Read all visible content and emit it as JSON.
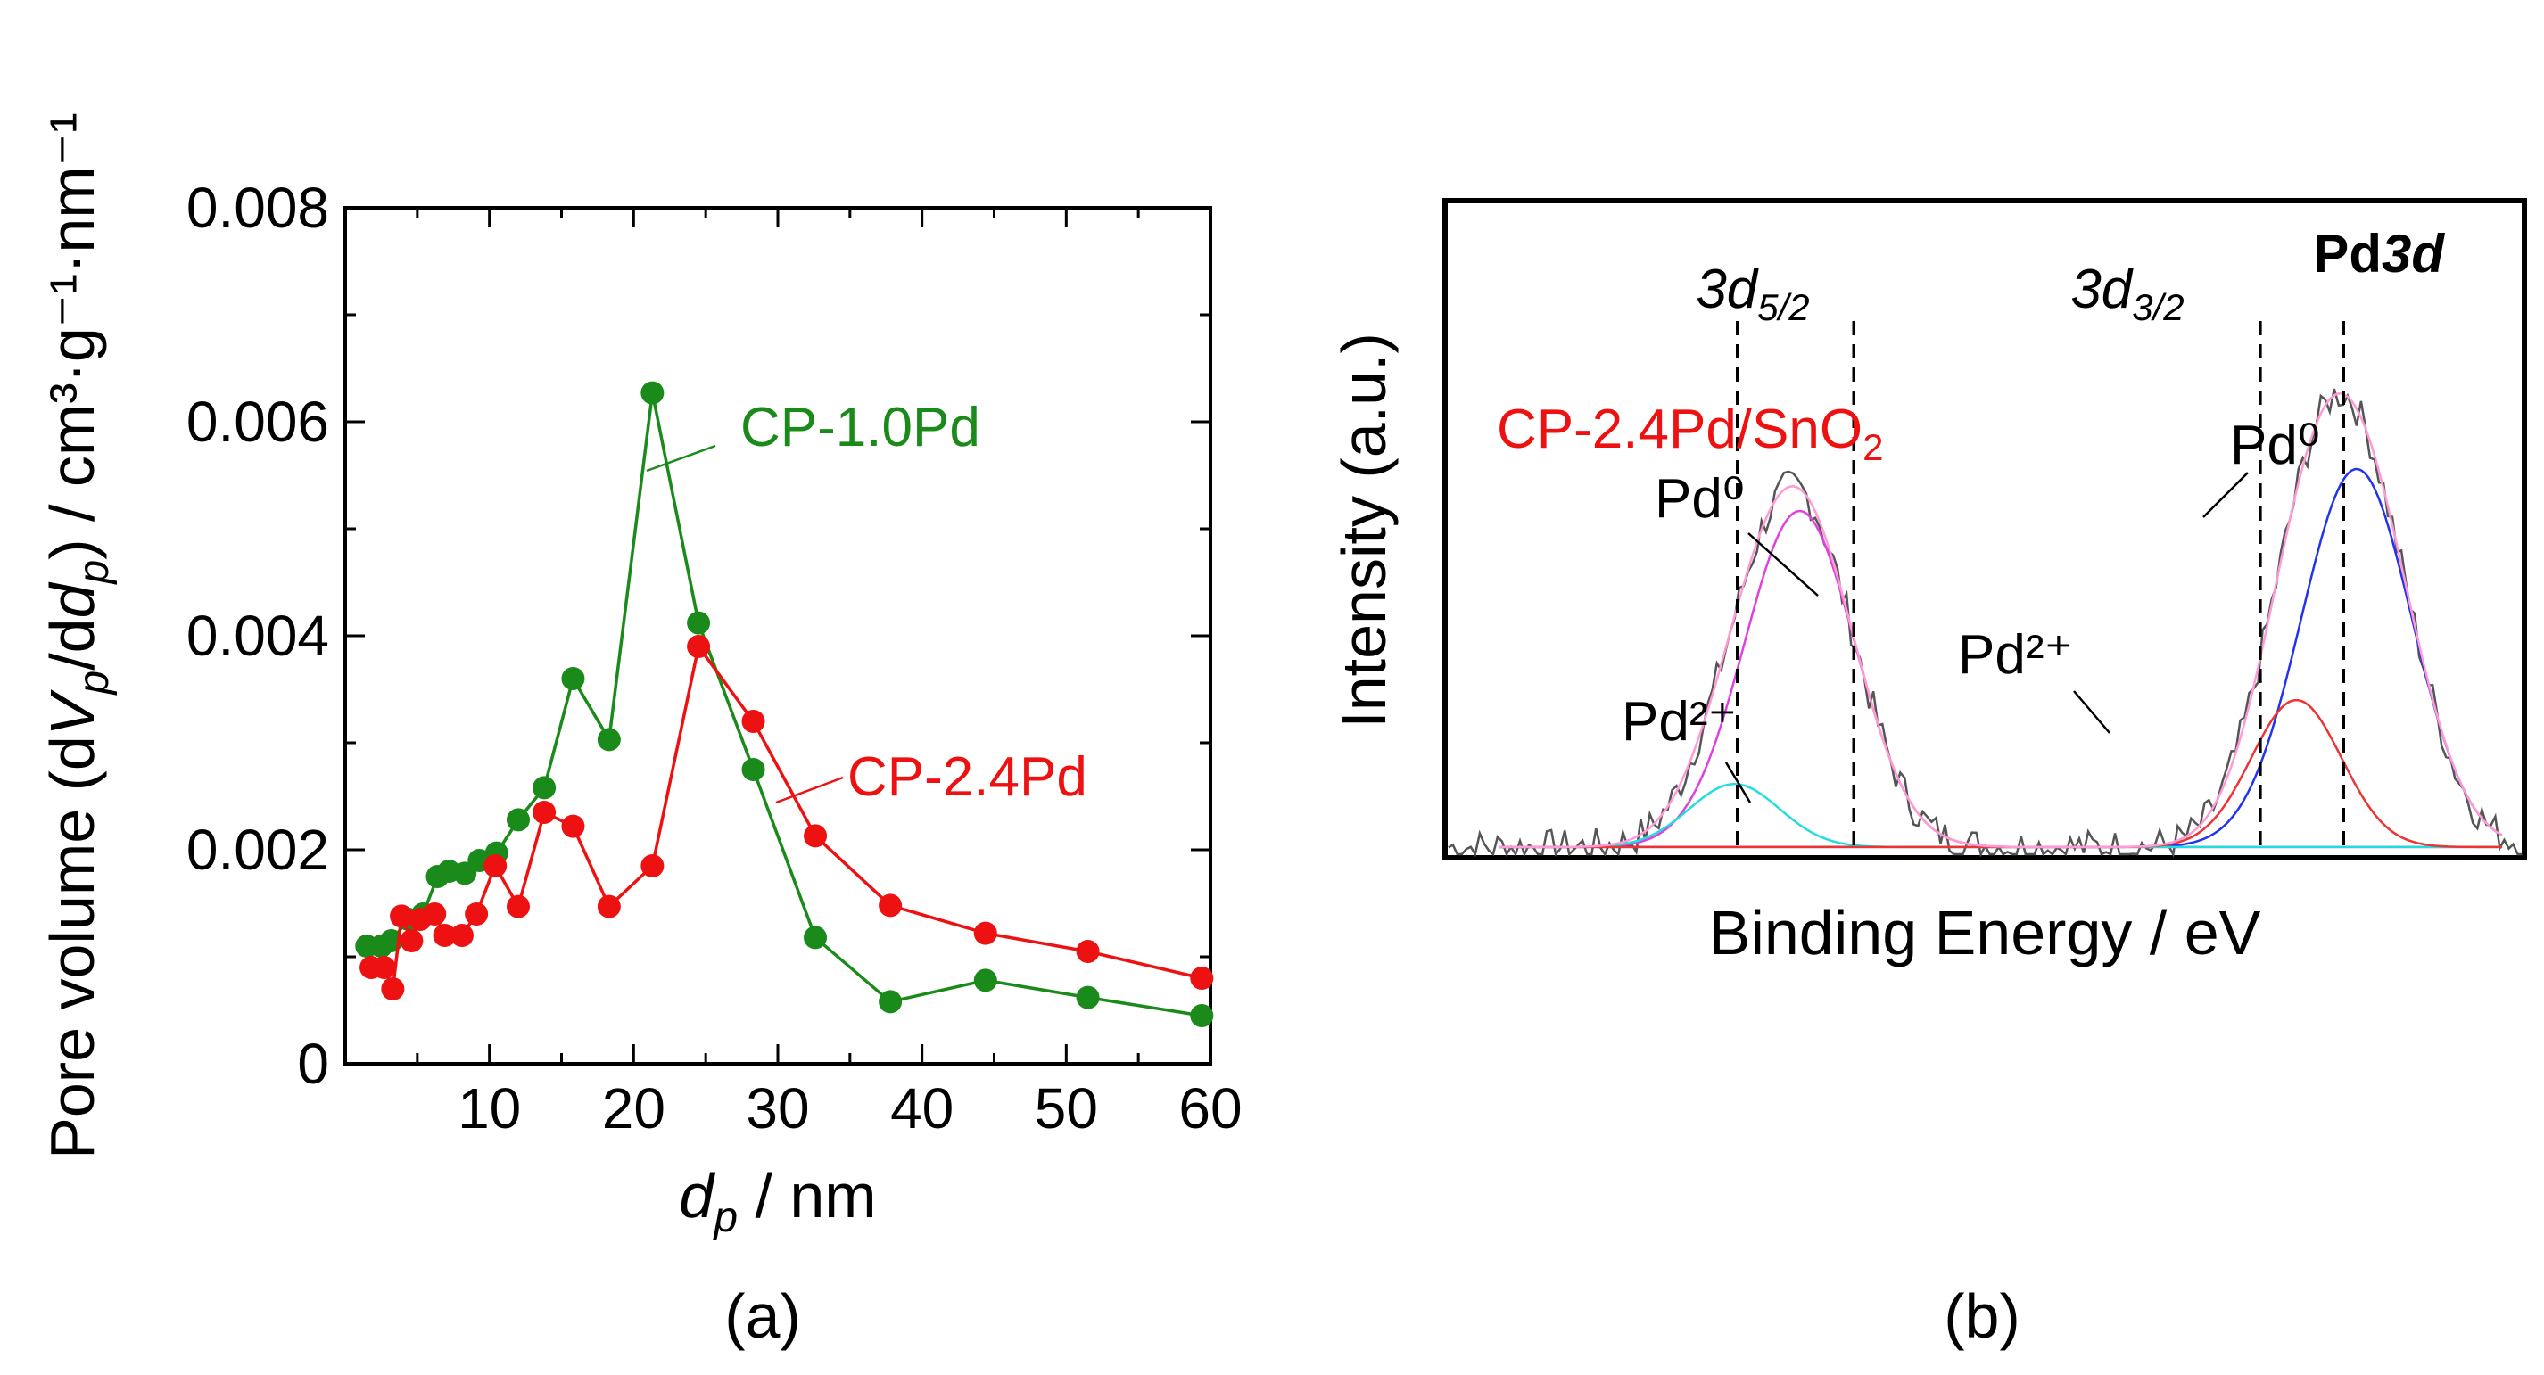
{
  "chart_data": [
    {
      "type": "line",
      "panel": "(a)",
      "xlabel_symbol": "d",
      "xlabel_sub": "p",
      "xlabel_unit": " / nm",
      "ylabel_prefix": "Pore volume (d",
      "ylabel_v": "V",
      "ylabel_p": "p",
      "ylabel_mid": "/d",
      "ylabel_d": "d",
      "ylabel_suffix": ") / cm³·g⁻¹·nm⁻¹",
      "xlim": [
        0,
        60
      ],
      "ylim": [
        0,
        0.008
      ],
      "xticks": [
        10,
        20,
        30,
        40,
        50,
        60
      ],
      "yticks": [
        0,
        0.002,
        0.004,
        0.006,
        0.008
      ],
      "ytick_labels": [
        "0",
        "0.002",
        "0.004",
        "0.006",
        "0.008"
      ],
      "series": [
        {
          "name": "CP-1.0Pd",
          "color": "#1a8a1a",
          "x": [
            1.5,
            2.5,
            3.2,
            4.4,
            5.4,
            6.4,
            7.2,
            8.3,
            9.3,
            10.5,
            12,
            13.8,
            15.8,
            18.3,
            21.3,
            24.5,
            28.3,
            32.6,
            37.8,
            44.4,
            51.5,
            59.4
          ],
          "y": [
            0.0011,
            0.0011,
            0.00115,
            0.00135,
            0.0014,
            0.00175,
            0.0018,
            0.00178,
            0.0019,
            0.00197,
            0.00228,
            0.00258,
            0.0036,
            0.00303,
            0.00627,
            0.00412,
            0.00275,
            0.00118,
            0.00058,
            0.00078,
            0.00062,
            0.00045
          ]
        },
        {
          "name": "CP-2.4Pd",
          "color": "#ee1111",
          "x": [
            1.8,
            2.7,
            3.3,
            3.9,
            4.6,
            5.2,
            6.2,
            6.9,
            8.1,
            9.1,
            10.4,
            12,
            13.8,
            15.8,
            18.3,
            21.3,
            24.5,
            28.3,
            32.6,
            37.8,
            44.4,
            51.5,
            59.4
          ],
          "y": [
            0.0009,
            0.0009,
            0.0007,
            0.00138,
            0.00115,
            0.00135,
            0.0014,
            0.0012,
            0.0012,
            0.0014,
            0.00185,
            0.00147,
            0.00235,
            0.00222,
            0.00147,
            0.00185,
            0.0039,
            0.0032,
            0.00213,
            0.00148,
            0.00122,
            0.00105,
            0.0008
          ]
        }
      ]
    },
    {
      "type": "line",
      "panel": "(b)",
      "title": "Pd",
      "title_italic": "3d",
      "xlabel": "Binding Energy / eV",
      "ylabel": "Intensity (a.u.)",
      "sample_label": "CP-2.4Pd/SnO",
      "sample_sub": "2",
      "sample_color": "#ee1111",
      "xlim": [
        0,
        1
      ],
      "ylim": [
        0,
        1
      ],
      "dashed_lines": [
        0.238,
        0.354,
        0.759,
        0.842
      ],
      "peak_labels": [
        {
          "base": "3d",
          "sub": "5/2"
        },
        {
          "base": "3d",
          "sub": "3/2"
        }
      ],
      "annotations": [
        "Pd⁰",
        "Pd²⁺",
        "Pd⁰",
        "Pd²⁺"
      ],
      "series": [
        {
          "name": "Pd0 3d5/2",
          "color": "#e040e0",
          "components": [
            {
              "center": 0.3,
              "amp": 0.56,
              "width": 0.055
            }
          ]
        },
        {
          "name": "Pd0 3d3/2",
          "color": "#2233ee",
          "components": [
            {
              "center": 0.855,
              "amp": 0.63,
              "width": 0.055
            }
          ]
        },
        {
          "name": "Pd2+",
          "color": "#22dddd",
          "components": [
            {
              "center": 0.235,
              "amp": 0.105,
              "width": 0.045
            }
          ]
        },
        {
          "name": "Pd2+",
          "color": "#ee3333",
          "components": [
            {
              "center": 0.795,
              "amp": 0.245,
              "width": 0.045
            }
          ]
        },
        {
          "name": "Envelope",
          "color": "#ff9ad5",
          "components": [
            {
              "center": 0.3,
              "amp": 0.56,
              "width": 0.055
            },
            {
              "center": 0.235,
              "amp": 0.105,
              "width": 0.045
            },
            {
              "center": 0.855,
              "amp": 0.63,
              "width": 0.055
            },
            {
              "center": 0.795,
              "amp": 0.245,
              "width": 0.045
            }
          ]
        }
      ]
    }
  ]
}
